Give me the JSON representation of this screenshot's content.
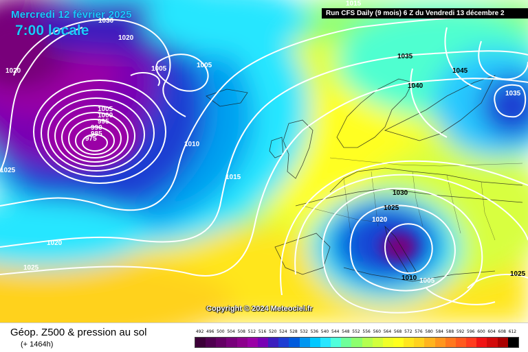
{
  "header": {
    "date": "Mercredi 12 février 2025",
    "local_time": "7:00 locale",
    "run_info": "Run CFS Daily (9 mois) 6 Z du Vendredi 13 décembre 2"
  },
  "map": {
    "copyright": "Copyright © 2024 Meteociel.fr",
    "isobar_labels": [
      "1015",
      "1020",
      "1005",
      "1005",
      "1020",
      "1005",
      "1000",
      "995",
      "990",
      "985",
      "975",
      "1010",
      "1025",
      "1015",
      "1020",
      "1025",
      "1035",
      "1040",
      "1045",
      "1035",
      "1030",
      "1025",
      "1020",
      "1010",
      "1005",
      "1025",
      "1030"
    ],
    "colors": {
      "low_center": "#6a0080",
      "high_area": "#ffd21e"
    }
  },
  "footer": {
    "title": "Géop. Z500 & pression au sol",
    "subtitle": "(+ 1464h)"
  },
  "legend": {
    "values": [
      "492",
      "496",
      "500",
      "504",
      "508",
      "512",
      "516",
      "520",
      "524",
      "528",
      "532",
      "536",
      "540",
      "544",
      "548",
      "552",
      "556",
      "560",
      "564",
      "568",
      "572",
      "576",
      "580",
      "584",
      "588",
      "592",
      "596",
      "600",
      "604",
      "608",
      "612"
    ],
    "colors": [
      "#3c0038",
      "#500050",
      "#640064",
      "#78007a",
      "#8c008c",
      "#9a00a6",
      "#7800b4",
      "#3c1ebe",
      "#1e3cd2",
      "#005adc",
      "#0096f0",
      "#00c8ff",
      "#28e6ff",
      "#50ffdc",
      "#6eff9a",
      "#8cff6e",
      "#b4ff50",
      "#d2ff3c",
      "#f0ff28",
      "#ffff1e",
      "#ffe61e",
      "#ffd21e",
      "#ffb41e",
      "#ff961e",
      "#ff781e",
      "#ff5a1e",
      "#ff3c1e",
      "#f01414",
      "#d20a0a",
      "#aa0000",
      "#000000"
    ]
  }
}
